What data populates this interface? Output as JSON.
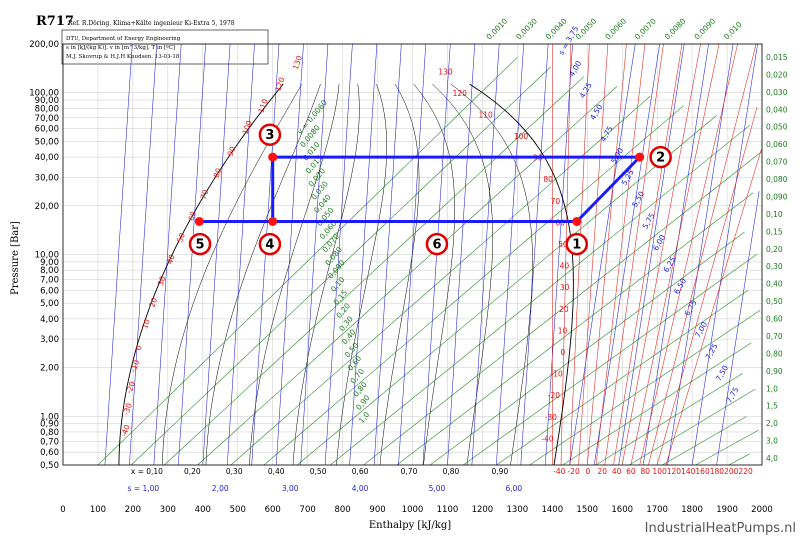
{
  "header": {
    "title": "R717",
    "reference": "Ref. R.Döring. Klima+Kälte ingenieur Ki-Extra 5, 1978",
    "lines": [
      "DTU, Department of Energy Engineering",
      "s in [kJ/(kg K)]. v in [m^3/kg]. T in [ºC]",
      "M.J. Skovrup & H.J.H Knudsen. 13-03-18"
    ]
  },
  "watermark": "IndustrialHeatPumps.nl",
  "chart_data": {
    "type": "line",
    "title": "R717",
    "xlabel": "Enthalpy [kJ/kg]",
    "ylabel": "Pressure [Bar]",
    "xlim": [
      0,
      2000
    ],
    "ylim": [
      0.5,
      200
    ],
    "y_scale": "log",
    "grid": true,
    "x_ticks": [
      "0",
      "100",
      "200",
      "300",
      "400",
      "500",
      "600",
      "700",
      "800",
      "900",
      "1000",
      "1100",
      "1200",
      "1300",
      "1400",
      "1500",
      "1600",
      "1700",
      "1800",
      "1900",
      "2000"
    ],
    "y_ticks": [
      {
        "label": "200,00",
        "value": 200
      },
      {
        "label": "100,00",
        "value": 100
      },
      {
        "label": "90,00",
        "value": 90
      },
      {
        "label": "80,00",
        "value": 80
      },
      {
        "label": "70,00",
        "value": 70
      },
      {
        "label": "60,00",
        "value": 60
      },
      {
        "label": "50,00",
        "value": 50
      },
      {
        "label": "40,00",
        "value": 40
      },
      {
        "label": "30,00",
        "value": 30
      },
      {
        "label": "20,00",
        "value": 20
      },
      {
        "label": "10,00",
        "value": 10
      },
      {
        "label": "9,00",
        "value": 9
      },
      {
        "label": "8,00",
        "value": 8
      },
      {
        "label": "7,00",
        "value": 7
      },
      {
        "label": "6,00",
        "value": 6
      },
      {
        "label": "5,00",
        "value": 5
      },
      {
        "label": "4,00",
        "value": 4
      },
      {
        "label": "3,00",
        "value": 3
      },
      {
        "label": "2,00",
        "value": 2
      },
      {
        "label": "1,00",
        "value": 1
      },
      {
        "label": "0,90",
        "value": 0.9
      },
      {
        "label": "0,80",
        "value": 0.8
      },
      {
        "label": "0,70",
        "value": 0.7
      },
      {
        "label": "0,60",
        "value": 0.6
      },
      {
        "label": "0,50",
        "value": 0.5
      }
    ],
    "quality_labels": [
      {
        "label": "x = 0,10",
        "h": 240
      },
      {
        "label": "0,20",
        "h": 370
      },
      {
        "label": "0,30",
        "h": 490
      },
      {
        "label": "0,40",
        "h": 610
      },
      {
        "label": "0,50",
        "h": 730
      },
      {
        "label": "0,60",
        "h": 850
      },
      {
        "label": "0,70",
        "h": 990
      },
      {
        "label": "0,80",
        "h": 1110
      },
      {
        "label": "0,90",
        "h": 1250
      }
    ],
    "entropy_labels": [
      {
        "label": "s = 1,00",
        "h": 230
      },
      {
        "label": "2,00",
        "h": 450
      },
      {
        "label": "3,00",
        "h": 650
      },
      {
        "label": "4,00",
        "h": 850
      },
      {
        "label": "5,00",
        "h": 1070
      },
      {
        "label": "6,00",
        "h": 1290
      }
    ],
    "liquid_temp_labels": [
      "-40",
      "-30",
      "-20",
      "-10",
      "0",
      "10",
      "20",
      "30",
      "40",
      "50",
      "60",
      "70",
      "80",
      "90",
      "100",
      "110",
      "120",
      "130"
    ],
    "vapour_temp_labels": [
      "130",
      "120",
      "110",
      "100",
      "90",
      "80",
      "70",
      "60",
      "50",
      "40",
      "30",
      "20",
      "10",
      "0",
      "-10",
      "-20",
      "-30",
      "-40"
    ],
    "bottom_temp_labels": [
      "-40",
      "-20",
      "0",
      "20",
      "40",
      "60",
      "80",
      "100",
      "120",
      "140",
      "160",
      "180",
      "200",
      "220"
    ],
    "specific_volume_right": [
      "0,015",
      "0,020",
      "0,030",
      "0,040",
      "0,050",
      "0,060",
      "0,070",
      "0,080",
      "0,090",
      "0,10",
      "0,15",
      "0,20",
      "0,30",
      "0,40",
      "0,50",
      "0,60",
      "0,70",
      "0,80",
      "0,90",
      "1,0",
      "1,5",
      "2,0",
      "3,0",
      "4,0"
    ],
    "specific_volume_top": [
      "0,0010",
      "0,0030",
      "0,0040",
      "0,0050",
      "0,0060",
      "0,0070",
      "0,0080",
      "0,0090",
      "0,010"
    ],
    "specific_volume_inner": [
      "v = 0,0060",
      "0,0080",
      "0,010",
      "0,015",
      "0,020",
      "0,030",
      "0,040",
      "0,050",
      "0,060",
      "0,070",
      "0,080",
      "0,090",
      "0,10",
      "0,15",
      "0,20",
      "0,30",
      "0,40",
      "0,50",
      "0,60",
      "0,70",
      "0,80",
      "0,90",
      "1,0"
    ],
    "entropy_superheat": [
      "s = 3,75",
      "4,00",
      "4,25",
      "4,50",
      "4,75",
      "5,00",
      "5,25",
      "5,50",
      "5,75",
      "6,00",
      "6,25",
      "6,50",
      "6,75",
      "7,00",
      "7,25",
      "7,50",
      "7,75"
    ],
    "cycle": {
      "name": "",
      "points": [
        {
          "id": "1",
          "h": 1470,
          "p": 16
        },
        {
          "id": "2",
          "h": 1650,
          "p": 40
        },
        {
          "id": "3",
          "h": 600,
          "p": 40
        },
        {
          "id": "4",
          "h": 600,
          "p": 16
        },
        {
          "id": "5",
          "h": 390,
          "p": 16
        },
        {
          "id": "6",
          "h": 1070,
          "p": 16
        }
      ],
      "path": [
        "1",
        "2",
        "3",
        "4",
        "1"
      ]
    },
    "labels": [
      {
        "id": "1",
        "h": 1470,
        "p": 11.6
      },
      {
        "id": "2",
        "h": 1710,
        "p": 40
      },
      {
        "id": "3",
        "h": 592,
        "p": 55
      },
      {
        "id": "4",
        "h": 592,
        "p": 11.6
      },
      {
        "id": "5",
        "h": 392,
        "p": 11.6
      },
      {
        "id": "6",
        "h": 1070,
        "p": 11.6
      }
    ]
  }
}
